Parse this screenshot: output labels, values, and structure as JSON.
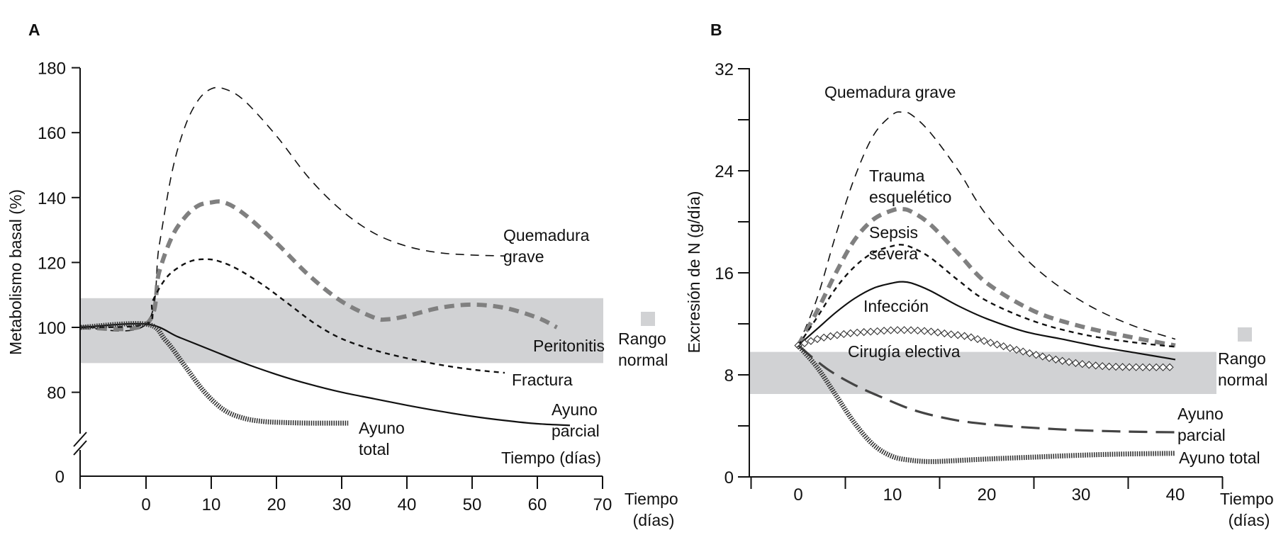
{
  "chart_data": [
    {
      "panel": "A",
      "type": "line",
      "title": "",
      "xlabel": "Tiempo (días)",
      "xlabel_inner": "Tiempo (días)",
      "ylabel": "Metabolismo basal (%)",
      "xlim": [
        -10,
        70
      ],
      "ylim": [
        0,
        180
      ],
      "y_axis_break": true,
      "xticks": [
        0,
        10,
        20,
        30,
        40,
        50,
        60,
        70
      ],
      "yticks": [
        0,
        80,
        100,
        120,
        140,
        160,
        180
      ],
      "grid": false,
      "normal_range": {
        "label": "Rango normal",
        "y": [
          89,
          109
        ],
        "color": "#d1d2d4"
      },
      "series": [
        {
          "name": "Quemadura grave",
          "label_lines": [
            "Quemadura",
            "grave"
          ],
          "style": "dashed-thin",
          "color": "#111111",
          "x": [
            -10,
            0,
            2,
            4,
            6,
            8,
            10,
            12,
            15,
            20,
            25,
            30,
            35,
            40,
            45,
            50,
            55
          ],
          "y": [
            100,
            101,
            125,
            148,
            162,
            170,
            173.5,
            173.5,
            170,
            159,
            146,
            136,
            129,
            125,
            123,
            122.3,
            122
          ]
        },
        {
          "name": "Peritonitis",
          "label_lines": [
            "Peritonitis"
          ],
          "style": "dashed-thick-gray",
          "color": "#808080",
          "x": [
            -10,
            0,
            2,
            4,
            6,
            8,
            10,
            12,
            15,
            20,
            25,
            30,
            35,
            37,
            40,
            45,
            50,
            55,
            60,
            63
          ],
          "y": [
            100,
            101,
            117,
            128,
            134,
            137.5,
            138.5,
            138.5,
            135,
            126,
            116,
            108,
            103,
            102.5,
            103.5,
            106,
            107,
            106,
            103,
            100
          ]
        },
        {
          "name": "Fractura",
          "label_lines": [
            "Fractura"
          ],
          "style": "dashed-short",
          "color": "#111111",
          "x": [
            -10,
            0,
            1,
            3,
            5,
            7,
            9,
            11,
            14,
            18,
            22,
            26,
            30,
            35,
            40,
            45,
            50,
            55
          ],
          "y": [
            100,
            101,
            108,
            115,
            118.5,
            120.5,
            121,
            120.5,
            118,
            113,
            107,
            101,
            96.5,
            93,
            90.5,
            88.5,
            87,
            86
          ]
        },
        {
          "name": "Ayuno parcial",
          "label_lines": [
            "Ayuno",
            "parcial"
          ],
          "style": "solid",
          "color": "#111111",
          "x": [
            -10,
            0,
            5,
            10,
            15,
            20,
            25,
            30,
            35,
            40,
            45,
            50,
            55,
            60,
            65
          ],
          "y": [
            100,
            101,
            97,
            93,
            89,
            85.5,
            82.5,
            80,
            78,
            76,
            74.2,
            72.6,
            71.3,
            70.3,
            69.8
          ]
        },
        {
          "name": "Ayuno total",
          "label_lines": [
            "Ayuno",
            "total"
          ],
          "style": "hatched",
          "color": "#333333",
          "x": [
            -10,
            0,
            3,
            6,
            9,
            12,
            15,
            18,
            21,
            25,
            28,
            31
          ],
          "y": [
            100,
            101,
            96,
            88,
            80,
            74.5,
            72,
            71,
            70.7,
            70.5,
            70.5,
            70.5
          ]
        }
      ]
    },
    {
      "panel": "B",
      "type": "line",
      "title": "",
      "xlabel": "Tiempo (días)",
      "ylabel": "Excresión de N (g/día)",
      "xlim": [
        -5,
        45
      ],
      "ylim": [
        0,
        32
      ],
      "xticks": [
        0,
        10,
        20,
        30,
        40
      ],
      "yticks": [
        0,
        8,
        16,
        24,
        32
      ],
      "minor_yticks": [
        4,
        12,
        20,
        28
      ],
      "tick_marks_x": [
        -5,
        5,
        15,
        25,
        35,
        45
      ],
      "grid": false,
      "normal_range": {
        "label": "Rango normal",
        "y": [
          6.5,
          9.8
        ],
        "color": "#d1d2d4"
      },
      "series": [
        {
          "name": "Quemadura grave",
          "label_lines": [
            "Quemadura grave"
          ],
          "style": "dashed-thin",
          "color": "#111111",
          "x": [
            0,
            2,
            4,
            6,
            8,
            10,
            11,
            12,
            14,
            17,
            20,
            25,
            30,
            35,
            40
          ],
          "y": [
            10.3,
            14,
            19,
            23.5,
            26.8,
            28.4,
            28.6,
            28.4,
            27,
            24,
            20.5,
            16.5,
            13.8,
            12,
            10.8
          ]
        },
        {
          "name": "Trauma esquelético",
          "label_lines": [
            "Trauma",
            "esquelético"
          ],
          "style": "dashed-thick-gray",
          "color": "#808080",
          "x": [
            0,
            2,
            4,
            6,
            8,
            10,
            11,
            12,
            14,
            17,
            20,
            25,
            30,
            35,
            40
          ],
          "y": [
            10.3,
            13,
            16,
            18.6,
            20.2,
            20.9,
            21,
            20.8,
            19.8,
            17.5,
            15.2,
            13,
            11.8,
            11,
            10.3
          ]
        },
        {
          "name": "Sepsis severa",
          "label_lines": [
            "Sepsis",
            "severa"
          ],
          "style": "dashed-short",
          "color": "#111111",
          "x": [
            0,
            2,
            4,
            6,
            8,
            10,
            11,
            12,
            14,
            17,
            20,
            25,
            30,
            35,
            40
          ],
          "y": [
            10.3,
            12.5,
            14.8,
            16.5,
            17.6,
            18.1,
            18.2,
            18,
            17.2,
            15.4,
            13.8,
            12.2,
            11.2,
            10.6,
            10.2
          ]
        },
        {
          "name": "Infección",
          "label_lines": [
            "Infección"
          ],
          "style": "solid",
          "color": "#111111",
          "x": [
            0,
            2,
            4,
            6,
            8,
            10,
            11,
            12,
            14,
            17,
            20,
            24,
            28,
            32,
            36,
            40
          ],
          "y": [
            10.3,
            11.6,
            12.9,
            14,
            14.8,
            15.2,
            15.3,
            15.2,
            14.6,
            13.4,
            12.4,
            11.4,
            10.8,
            10.2,
            9.7,
            9.2
          ]
        },
        {
          "name": "Cirugía electiva",
          "label_lines": [
            "Cirugía electiva"
          ],
          "style": "diamonds",
          "color": "#111111",
          "x": [
            0,
            2,
            4,
            6,
            8,
            10,
            12,
            14,
            16,
            18,
            20,
            24,
            28,
            32,
            36,
            40
          ],
          "y": [
            10.3,
            10.8,
            11.1,
            11.3,
            11.4,
            11.5,
            11.5,
            11.4,
            11.2,
            11,
            10.6,
            9.8,
            9.1,
            8.7,
            8.6,
            8.6
          ]
        },
        {
          "name": "Ayuno parcial",
          "label_lines": [
            "Ayuno",
            "parcial"
          ],
          "style": "dashed-long-gray",
          "color": "#444444",
          "x": [
            0,
            3,
            6,
            9,
            12,
            15,
            18,
            22,
            26,
            30,
            35,
            40
          ],
          "y": [
            10.3,
            8.5,
            7.2,
            6.2,
            5.3,
            4.7,
            4.3,
            4.0,
            3.8,
            3.65,
            3.55,
            3.5
          ]
        },
        {
          "name": "Ayuno total",
          "label_lines": [
            "Ayuno total"
          ],
          "style": "hatched",
          "color": "#333333",
          "x": [
            0,
            2,
            4,
            6,
            8,
            10,
            12,
            14,
            16,
            20,
            25,
            30,
            35,
            40
          ],
          "y": [
            10.3,
            8.6,
            6.4,
            4.2,
            2.5,
            1.6,
            1.3,
            1.2,
            1.25,
            1.4,
            1.55,
            1.7,
            1.8,
            1.85
          ]
        }
      ]
    }
  ]
}
